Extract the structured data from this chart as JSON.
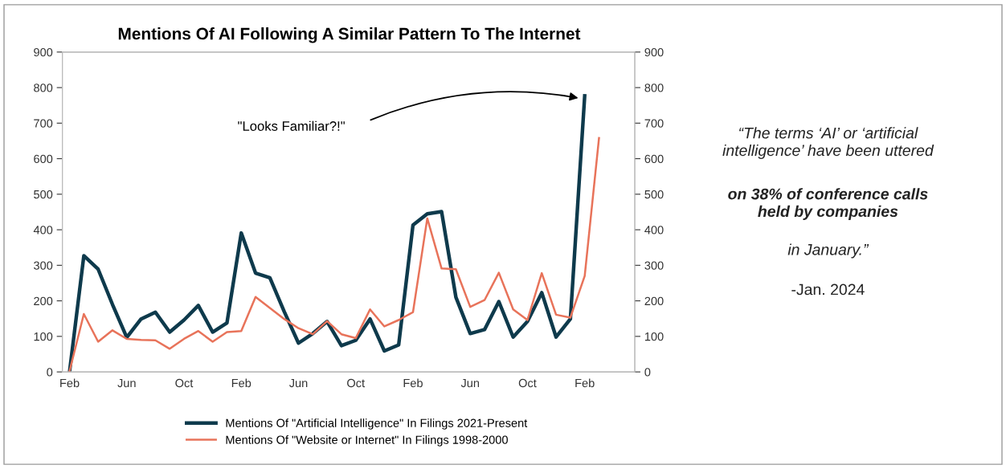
{
  "chart_data": {
    "type": "line",
    "title": "Mentions Of AI Following A Similar Pattern To The Internet",
    "categories": [
      "Feb",
      null,
      null,
      null,
      "Jun",
      null,
      null,
      null,
      "Oct",
      null,
      null,
      null,
      "Feb",
      null,
      null,
      null,
      "Jun",
      null,
      null,
      null,
      "Oct",
      null,
      null,
      null,
      "Feb",
      null,
      null,
      null,
      "Jun",
      null,
      null,
      null,
      "Oct",
      null,
      null,
      null,
      "Feb",
      null,
      null,
      null
    ],
    "series": [
      {
        "name": "Mentions Of \"Artificial Intelligence\" In Filings 2021-Present",
        "color": "#0e3a4c",
        "values": [
          0,
          327,
          289,
          190,
          97,
          149,
          168,
          112,
          146,
          187,
          112,
          138,
          391,
          278,
          265,
          170,
          81,
          108,
          142,
          74,
          89,
          149,
          59,
          76,
          413,
          445,
          451,
          210,
          108,
          119,
          198,
          98,
          142,
          223,
          98,
          149,
          777,
          null,
          null,
          null
        ]
      },
      {
        "name": "Mentions Of \"Website or Internet\" In Filings 1998-2000",
        "color": "#e8735a",
        "values": [
          2,
          163,
          85,
          117,
          93,
          90,
          89,
          65,
          93,
          115,
          85,
          112,
          115,
          211,
          180,
          149,
          123,
          106,
          143,
          106,
          95,
          176,
          128,
          146,
          168,
          432,
          291,
          289,
          183,
          202,
          279,
          176,
          146,
          278,
          161,
          153,
          270,
          658,
          null,
          null
        ]
      }
    ],
    "ylim": [
      0,
      900
    ],
    "yticks": [
      0,
      100,
      200,
      300,
      400,
      500,
      600,
      700,
      800,
      900
    ],
    "y2lim": [
      0,
      900
    ],
    "y2ticks": [
      0,
      100,
      200,
      300,
      400,
      500,
      600,
      700,
      800,
      900
    ],
    "legend": "bottom",
    "grid": false,
    "marker": "none",
    "line_style": "solid",
    "annotations": [
      "\"Looks Familiar?!\"",
      "“The terms ‘AI’ or ‘artificial\nintelligence’ have been uttered",
      "on 38% of conference calls\nheld by companies",
      "in January.”",
      "-Jan. 2024"
    ]
  }
}
